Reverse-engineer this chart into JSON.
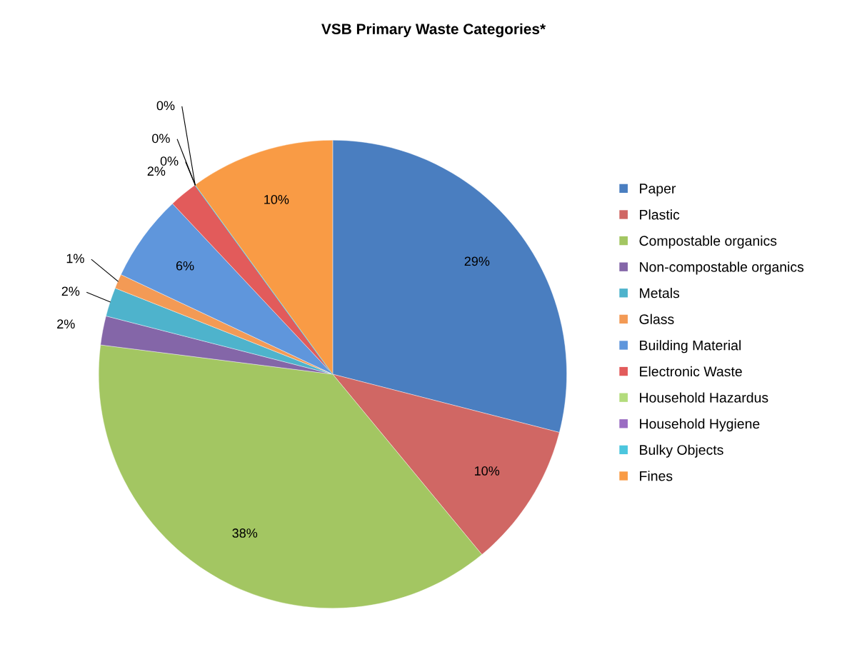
{
  "chart_data": {
    "type": "pie",
    "title": "VSB Primary Waste Categories*",
    "categories": [
      "Paper",
      "Plastic",
      "Compostable organics",
      "Non-compostable organics",
      "Metals",
      "Glass",
      "Building Material",
      "Electronic Waste",
      "Household Hazardus",
      "Household Hygiene",
      "Bulky Objects",
      "Fines"
    ],
    "values": [
      29,
      10,
      38,
      2,
      2,
      1,
      6,
      2,
      0,
      0,
      0,
      10
    ],
    "value_labels": [
      "29%",
      "10%",
      "38%",
      "2%",
      "2%",
      "1%",
      "6%",
      "2%",
      "0%",
      "0%",
      "0%",
      "10%"
    ],
    "colors": [
      "#4a7ec0",
      "#d06764",
      "#a3c662",
      "#8466a8",
      "#4eb3cc",
      "#f39a55",
      "#5f96dc",
      "#e25b5b",
      "#b3dc7c",
      "#9a6cc2",
      "#4cc6de",
      "#f99b45"
    ],
    "legend": "right"
  }
}
